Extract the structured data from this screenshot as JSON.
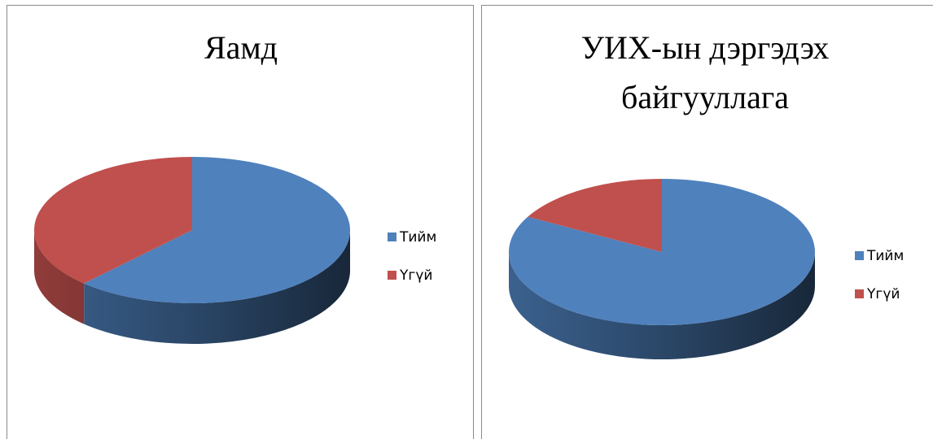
{
  "chart_data": [
    {
      "type": "pie3d",
      "title": [
        "Яамд"
      ],
      "categories": [
        "Тийм",
        "Үгүй"
      ],
      "values": [
        62,
        38
      ],
      "colors": [
        "#4f81bd",
        "#c0504d"
      ],
      "legend": "right"
    },
    {
      "type": "pie3d",
      "title": [
        "УИХ-ын дэргэдэх",
        "байгууллага"
      ],
      "categories": [
        "Тийм",
        "Үгүй"
      ],
      "values": [
        83,
        17
      ],
      "colors": [
        "#4f81bd",
        "#c0504d"
      ],
      "legend": "right"
    }
  ]
}
